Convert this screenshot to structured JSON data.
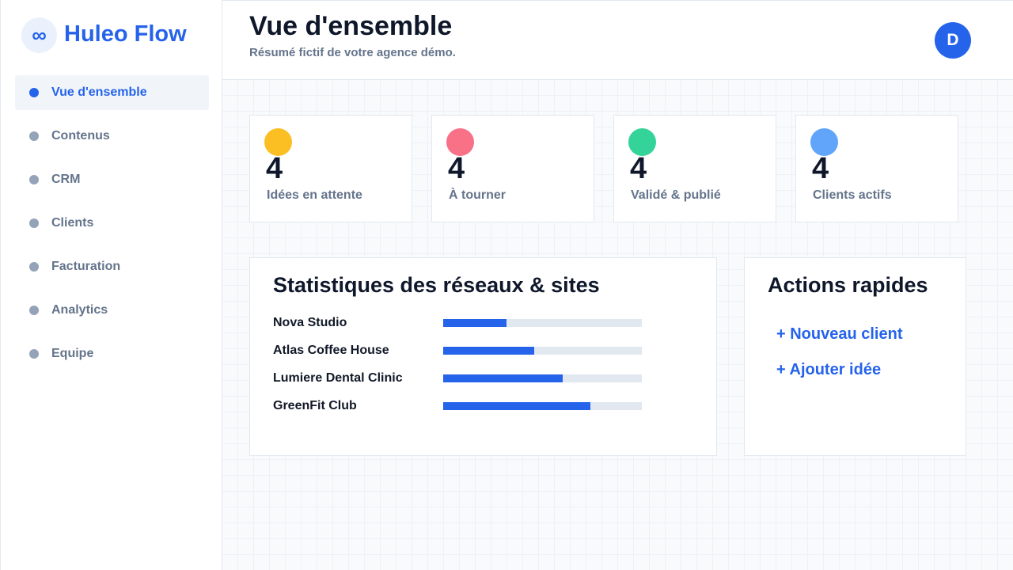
{
  "brand": {
    "icon": "∞",
    "name": "Huleo Flow"
  },
  "nav": [
    "Vue d'ensemble",
    "Contenus",
    "CRM",
    "Clients",
    "Facturation",
    "Analytics",
    "Equipe"
  ],
  "header": {
    "title": "Vue d'ensemble",
    "subtitle": "Résumé fictif de votre agence démo.",
    "avatar": "D"
  },
  "kpis": [
    {
      "value": 4,
      "label": "Idées en attente"
    },
    {
      "value": 4,
      "label": "À tourner"
    },
    {
      "value": 4,
      "label": "Validé & publié"
    },
    {
      "value": 4,
      "label": "Clients actifs"
    }
  ],
  "stats": {
    "title": "Statistiques des réseaux & sites",
    "rows": [
      {
        "name": "Nova Studio",
        "value": 32
      },
      {
        "name": "Atlas Coffee House",
        "value": 46
      },
      {
        "name": "Lumiere Dental Clinic",
        "value": 60
      },
      {
        "name": "GreenFit Club",
        "value": 74
      }
    ]
  },
  "actions": {
    "title": "Actions rapides",
    "items": [
      "+ Nouveau client",
      "+ Ajouter idée"
    ]
  }
}
